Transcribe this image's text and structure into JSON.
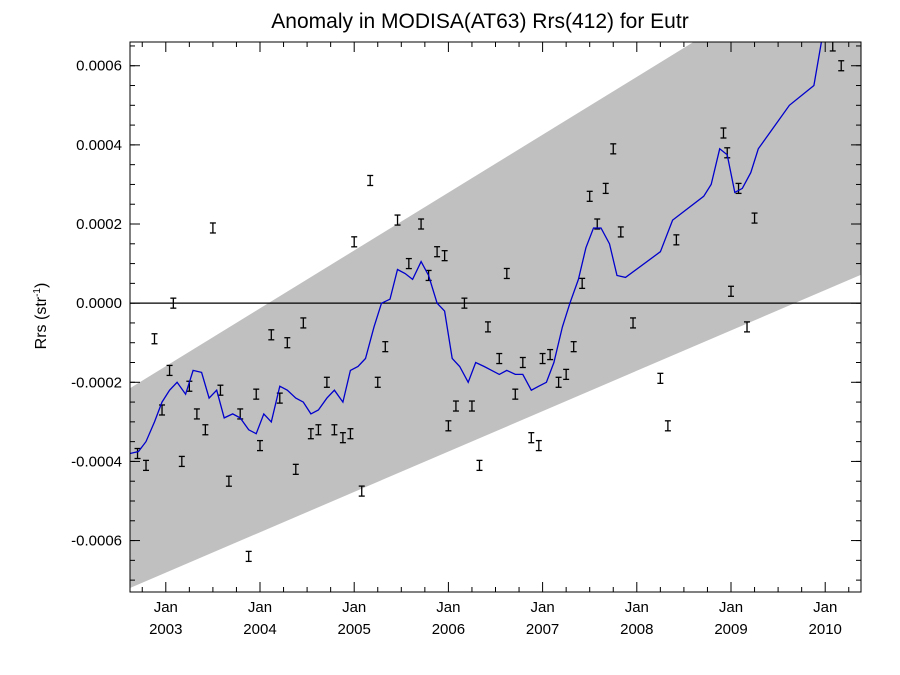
{
  "chart_data": {
    "type": "line",
    "title": "Anomaly in MODISA(AT63) Rrs(412) for Eutr",
    "ylabel": "Rrs (str",
    "ylabel_superscript": "-1",
    "ylabel_suffix": ")",
    "xlim": [
      2002.62,
      2010.38
    ],
    "ylim": [
      -0.00073,
      0.00066
    ],
    "grid": false,
    "zero_line": true,
    "x_ticks": [
      {
        "x": 2003.0,
        "month": "Jan",
        "year": "2003"
      },
      {
        "x": 2004.0,
        "month": "Jan",
        "year": "2004"
      },
      {
        "x": 2005.0,
        "month": "Jan",
        "year": "2005"
      },
      {
        "x": 2006.0,
        "month": "Jan",
        "year": "2006"
      },
      {
        "x": 2007.0,
        "month": "Jan",
        "year": "2007"
      },
      {
        "x": 2008.0,
        "month": "Jan",
        "year": "2008"
      },
      {
        "x": 2009.0,
        "month": "Jan",
        "year": "2009"
      },
      {
        "x": 2010.0,
        "month": "Jan",
        "year": "2010"
      }
    ],
    "y_ticks": [
      {
        "value": 0.0006,
        "label": "0.0006"
      },
      {
        "value": 0.0004,
        "label": "0.0004"
      },
      {
        "value": 0.0002,
        "label": "0.0002"
      },
      {
        "value": 0.0,
        "label": "0.0000"
      },
      {
        "value": -0.0002,
        "label": "-0.0002"
      },
      {
        "value": -0.0004,
        "label": "-0.0004"
      },
      {
        "value": -0.0006,
        "label": "-0.0006"
      }
    ],
    "confidence_band": {
      "color": "#c0c0c0",
      "upper": [
        [
          2002.62,
          -0.000215
        ],
        [
          2010.38,
          0.00092
        ]
      ],
      "lower": [
        [
          2002.62,
          -0.00072
        ],
        [
          2010.38,
          7.2e-05
        ]
      ]
    },
    "series": [
      {
        "kind": "line",
        "color": "#0000cc",
        "points": [
          [
            2002.62,
            -0.00038
          ],
          [
            2002.71,
            -0.000375
          ],
          [
            2002.79,
            -0.00035
          ],
          [
            2002.88,
            -0.0003
          ],
          [
            2002.96,
            -0.00025
          ],
          [
            2003.04,
            -0.00022
          ],
          [
            2003.12,
            -0.0002
          ],
          [
            2003.21,
            -0.00023
          ],
          [
            2003.29,
            -0.00017
          ],
          [
            2003.38,
            -0.000175
          ],
          [
            2003.46,
            -0.00024
          ],
          [
            2003.54,
            -0.00022
          ],
          [
            2003.62,
            -0.00029
          ],
          [
            2003.71,
            -0.00028
          ],
          [
            2003.79,
            -0.00029
          ],
          [
            2003.88,
            -0.00032
          ],
          [
            2003.96,
            -0.00033
          ],
          [
            2004.04,
            -0.00028
          ],
          [
            2004.12,
            -0.0003
          ],
          [
            2004.21,
            -0.00021
          ],
          [
            2004.29,
            -0.00022
          ],
          [
            2004.38,
            -0.00024
          ],
          [
            2004.46,
            -0.00025
          ],
          [
            2004.54,
            -0.00028
          ],
          [
            2004.62,
            -0.00027
          ],
          [
            2004.71,
            -0.00024
          ],
          [
            2004.79,
            -0.00022
          ],
          [
            2004.88,
            -0.00025
          ],
          [
            2004.96,
            -0.00017
          ],
          [
            2005.04,
            -0.00016
          ],
          [
            2005.12,
            -0.00014
          ],
          [
            2005.21,
            -6e-05
          ],
          [
            2005.29,
            0.0
          ],
          [
            2005.38,
            1e-05
          ],
          [
            2005.46,
            8.5e-05
          ],
          [
            2005.54,
            7.5e-05
          ],
          [
            2005.62,
            6e-05
          ],
          [
            2005.71,
            0.000105
          ],
          [
            2005.79,
            7e-05
          ],
          [
            2005.88,
            0.0
          ],
          [
            2005.96,
            -2e-05
          ],
          [
            2006.04,
            -0.00014
          ],
          [
            2006.12,
            -0.00016
          ],
          [
            2006.21,
            -0.0002
          ],
          [
            2006.29,
            -0.00015
          ],
          [
            2006.38,
            -0.00016
          ],
          [
            2006.46,
            -0.00017
          ],
          [
            2006.54,
            -0.00018
          ],
          [
            2006.62,
            -0.00017
          ],
          [
            2006.71,
            -0.00018
          ],
          [
            2006.79,
            -0.00018
          ],
          [
            2006.88,
            -0.00022
          ],
          [
            2006.96,
            -0.00021
          ],
          [
            2007.04,
            -0.0002
          ],
          [
            2007.12,
            -0.00015
          ],
          [
            2007.21,
            -6e-05
          ],
          [
            2007.29,
            0.0
          ],
          [
            2007.38,
            6e-05
          ],
          [
            2007.46,
            0.00014
          ],
          [
            2007.54,
            0.00019
          ],
          [
            2007.62,
            0.00019
          ],
          [
            2007.71,
            0.00015
          ],
          [
            2007.79,
            7e-05
          ],
          [
            2007.88,
            6.5e-05
          ],
          [
            2008.25,
            0.00013
          ],
          [
            2008.38,
            0.00021
          ],
          [
            2008.71,
            0.00027
          ],
          [
            2008.79,
            0.0003
          ],
          [
            2008.88,
            0.00039
          ],
          [
            2008.96,
            0.000375
          ],
          [
            2009.04,
            0.00028
          ],
          [
            2009.12,
            0.00029
          ],
          [
            2009.21,
            0.00033
          ],
          [
            2009.29,
            0.00039
          ],
          [
            2009.62,
            0.0005
          ],
          [
            2009.88,
            0.00055
          ],
          [
            2009.96,
            0.00066
          ]
        ]
      },
      {
        "kind": "error_bars",
        "color": "#000000",
        "points": [
          [
            2002.7,
            -0.00038
          ],
          [
            2002.79,
            -0.00041
          ],
          [
            2002.88,
            -9e-05
          ],
          [
            2002.96,
            -0.00027
          ],
          [
            2003.04,
            -0.00017
          ],
          [
            2003.08,
            0.0
          ],
          [
            2003.17,
            -0.0004
          ],
          [
            2003.25,
            -0.00021
          ],
          [
            2003.33,
            -0.00028
          ],
          [
            2003.42,
            -0.00032
          ],
          [
            2003.5,
            0.00019
          ],
          [
            2003.58,
            -0.00022
          ],
          [
            2003.67,
            -0.00045
          ],
          [
            2003.79,
            -0.00028
          ],
          [
            2003.88,
            -0.00064
          ],
          [
            2003.96,
            -0.00023
          ],
          [
            2004.0,
            -0.00036
          ],
          [
            2004.12,
            -8e-05
          ],
          [
            2004.21,
            -0.00024
          ],
          [
            2004.29,
            -0.0001
          ],
          [
            2004.38,
            -0.00042
          ],
          [
            2004.46,
            -5e-05
          ],
          [
            2004.54,
            -0.00033
          ],
          [
            2004.62,
            -0.00032
          ],
          [
            2004.71,
            -0.0002
          ],
          [
            2004.79,
            -0.00032
          ],
          [
            2004.88,
            -0.00034
          ],
          [
            2004.96,
            -0.00033
          ],
          [
            2005.0,
            0.000155
          ],
          [
            2005.08,
            -0.000475
          ],
          [
            2005.17,
            0.00031
          ],
          [
            2005.25,
            -0.0002
          ],
          [
            2005.33,
            -0.00011
          ],
          [
            2005.46,
            0.00021
          ],
          [
            2005.58,
            0.0001
          ],
          [
            2005.71,
            0.0002
          ],
          [
            2005.79,
            7e-05
          ],
          [
            2005.88,
            0.00013
          ],
          [
            2005.96,
            0.00012
          ],
          [
            2006.0,
            -0.00031
          ],
          [
            2006.08,
            -0.00026
          ],
          [
            2006.17,
            0.0
          ],
          [
            2006.25,
            -0.00026
          ],
          [
            2006.33,
            -0.00041
          ],
          [
            2006.42,
            -6e-05
          ],
          [
            2006.54,
            -0.00014
          ],
          [
            2006.62,
            7.5e-05
          ],
          [
            2006.71,
            -0.00023
          ],
          [
            2006.79,
            -0.00015
          ],
          [
            2006.88,
            -0.00034
          ],
          [
            2006.96,
            -0.00036
          ],
          [
            2007.0,
            -0.00014
          ],
          [
            2007.08,
            -0.00013
          ],
          [
            2007.17,
            -0.0002
          ],
          [
            2007.25,
            -0.00018
          ],
          [
            2007.33,
            -0.00011
          ],
          [
            2007.42,
            5e-05
          ],
          [
            2007.5,
            0.00027
          ],
          [
            2007.58,
            0.0002
          ],
          [
            2007.67,
            0.00029
          ],
          [
            2007.75,
            0.00039
          ],
          [
            2007.83,
            0.00018
          ],
          [
            2007.96,
            -5e-05
          ],
          [
            2008.25,
            -0.00019
          ],
          [
            2008.33,
            -0.00031
          ],
          [
            2008.42,
            0.00016
          ],
          [
            2008.92,
            0.00043
          ],
          [
            2008.96,
            0.00038
          ],
          [
            2009.0,
            3e-05
          ],
          [
            2009.08,
            0.00029
          ],
          [
            2009.17,
            -6e-05
          ],
          [
            2009.25,
            0.000215
          ],
          [
            2009.96,
            0.00068
          ],
          [
            2010.08,
            0.00065
          ],
          [
            2010.17,
            0.0006
          ]
        ]
      }
    ]
  }
}
